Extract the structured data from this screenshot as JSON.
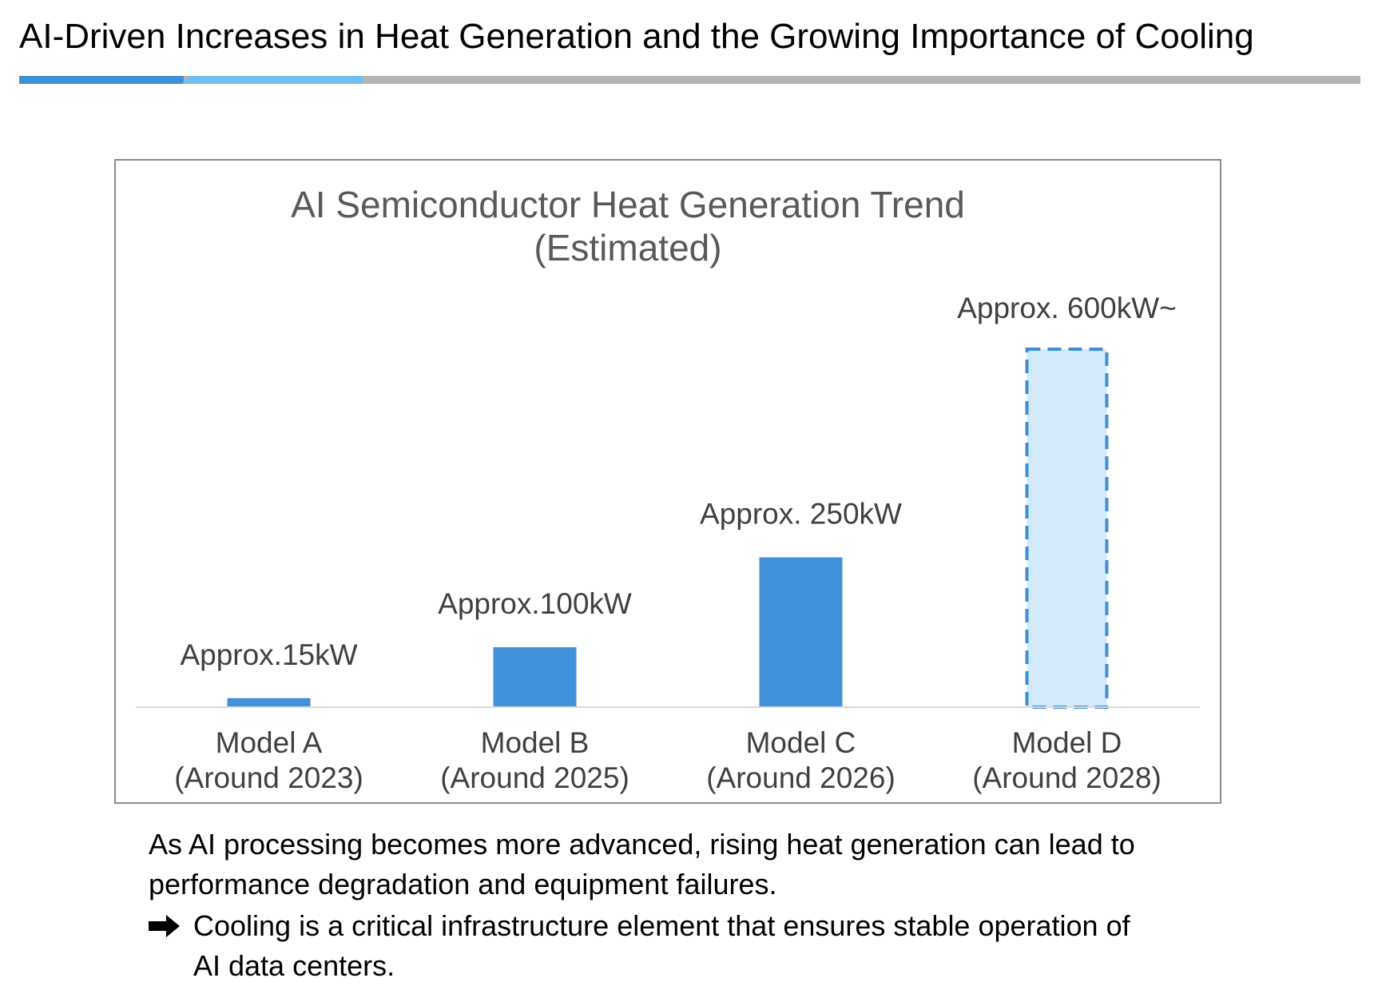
{
  "slide": {
    "title": "AI-Driven Increases in Heat Generation and the Growing Importance of Cooling",
    "accent_colors": [
      "#3f8fd8",
      "#70bdf0",
      "#b5b5b5"
    ]
  },
  "chart_data": {
    "type": "bar",
    "title_lines": [
      "AI Semiconductor Heat Generation Trend",
      "(Estimated)"
    ],
    "categories": [
      [
        "Model A",
        "(Around 2023)"
      ],
      [
        "Model B",
        "(Around 2025)"
      ],
      [
        "Model C",
        "(Around 2026)"
      ],
      [
        "Model D",
        "(Around 2028)"
      ]
    ],
    "values": [
      15,
      100,
      250,
      600
    ],
    "unit": "kW",
    "data_labels": [
      "Approx.15kW",
      "Approx.100kW",
      "Approx. 250kW",
      "Approx. 600kW~"
    ],
    "estimated": [
      false,
      false,
      false,
      true
    ],
    "ylim": [
      0,
      600
    ],
    "grid": false,
    "legend": "none",
    "colors": {
      "bar": "#4191de",
      "estimated_fill": "#d2eafb",
      "estimated_border": "#3f8fd8",
      "axis": "#d9d9d9"
    }
  },
  "caption": {
    "line1": "As AI processing becomes more advanced, rising heat generation can lead to",
    "line2": "performance degradation and equipment failures.",
    "arrow_icon": "right-arrow-icon",
    "line3": "Cooling is a critical infrastructure element that ensures stable operation of",
    "line4": "AI data centers."
  }
}
